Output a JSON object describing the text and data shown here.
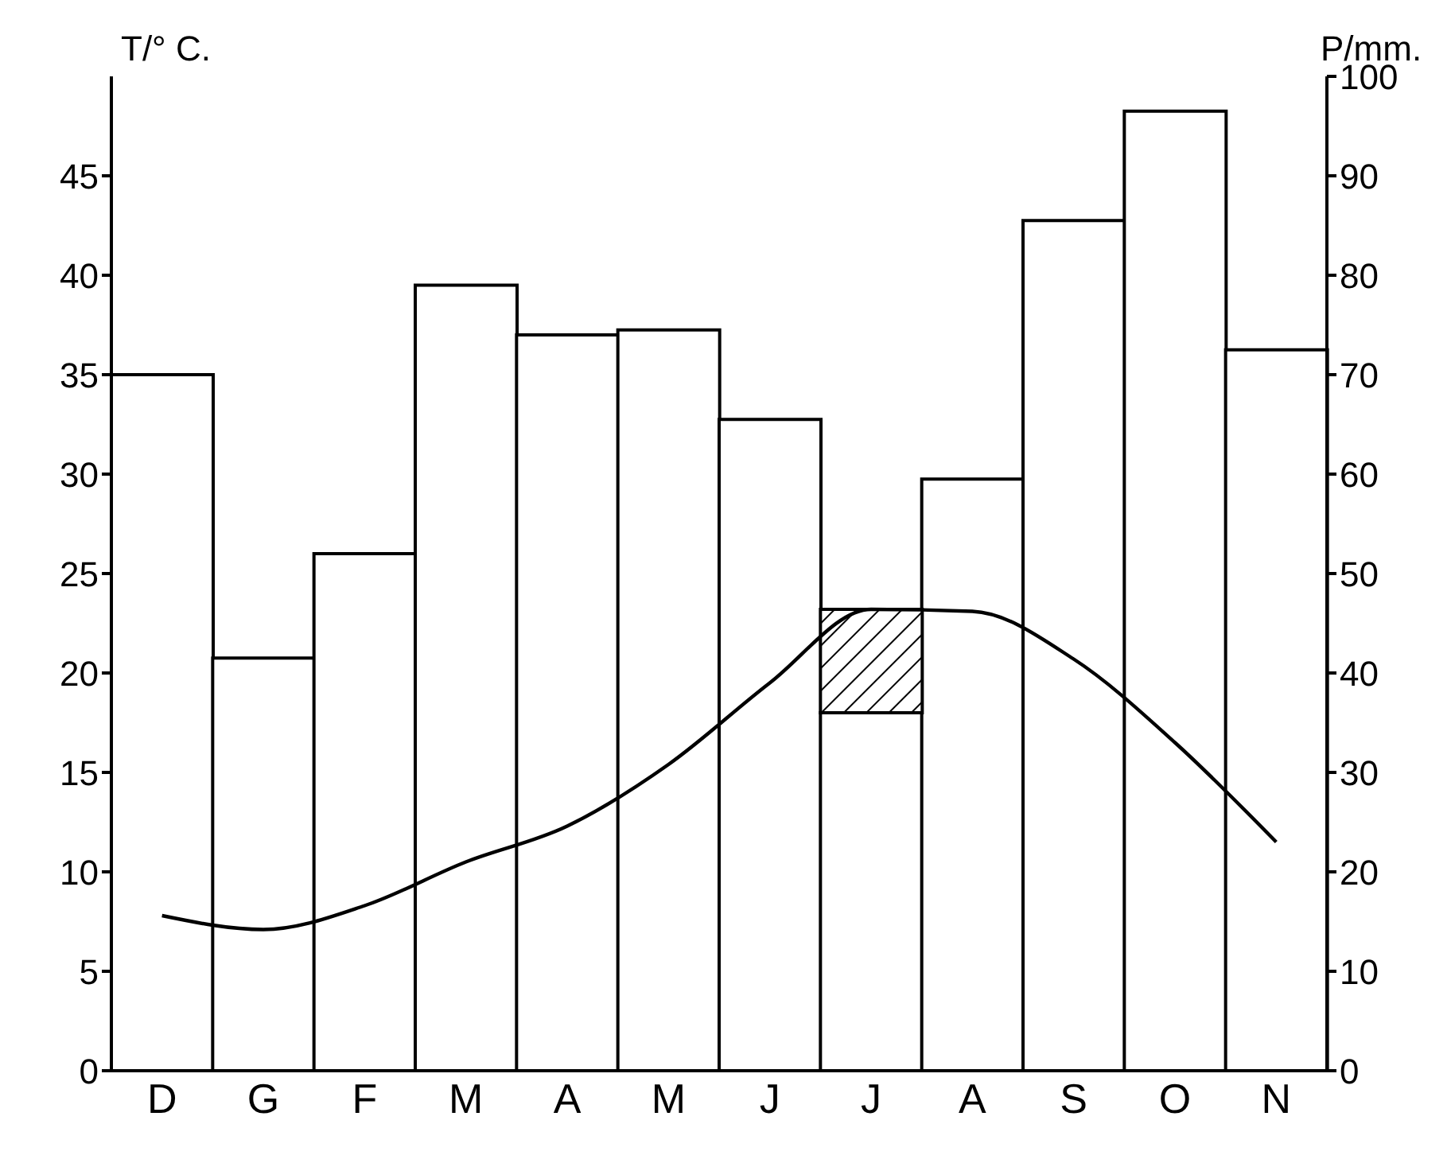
{
  "chart_data": {
    "type": "bar",
    "categories": [
      "D",
      "G",
      "F",
      "M",
      "A",
      "M",
      "J",
      "J",
      "A",
      "S",
      "O",
      "N"
    ],
    "ylabel": "T/° C.",
    "y2label": "P/mm.",
    "ylim": [
      0,
      50
    ],
    "yticks": [
      0,
      5,
      10,
      15,
      20,
      25,
      30,
      35,
      40,
      45
    ],
    "y2lim": [
      0,
      100
    ],
    "y2ticks": [
      0,
      10,
      20,
      30,
      40,
      50,
      60,
      70,
      80,
      90,
      100
    ],
    "stacked": true,
    "grid": false,
    "legend": false,
    "marker": "none",
    "line_style": "solid",
    "series": [
      {
        "axis": "y2",
        "color": "#ffffff",
        "values": [
          70,
          41.5,
          52,
          79,
          74,
          74.5,
          65.5,
          36,
          59.5,
          85.5,
          96.5,
          72.5
        ]
      },
      {
        "axis": "y2",
        "color": "#000000",
        "values": [
          null,
          null,
          null,
          null,
          null,
          null,
          null,
          10.4,
          null,
          null,
          null,
          null
        ]
      },
      {
        "type": "line",
        "color": "#000000",
        "values": [
          7.8,
          7.1,
          8.3,
          10.5,
          12.3,
          15.4,
          19.5,
          23.2,
          23.1,
          20.7,
          16.5,
          11.5
        ]
      }
    ]
  }
}
